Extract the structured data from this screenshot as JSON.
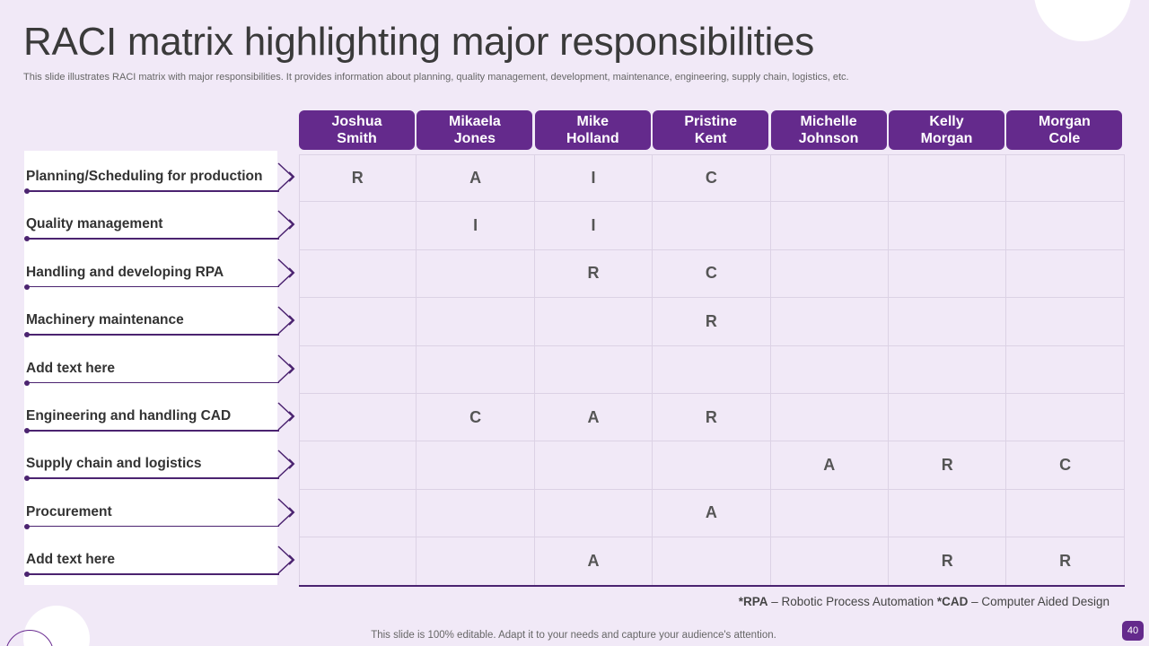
{
  "title": "RACI matrix highlighting major responsibilities",
  "subtitle": "This slide illustrates RACI matrix with major responsibilities. It provides information about planning, quality management, development, maintenance, engineering, supply chain, logistics, etc.",
  "people": [
    "Joshua\nSmith",
    "Mikaela\nJones",
    "Mike\nHolland",
    "Pristine\nKent",
    "Michelle\nJohnson",
    "Kelly\nMorgan",
    "Morgan\nCole"
  ],
  "rows": [
    {
      "label": "Planning/Scheduling for production",
      "cells": [
        "R",
        "A",
        "I",
        "C",
        "",
        "",
        ""
      ]
    },
    {
      "label": "Quality management",
      "cells": [
        "",
        "I",
        "I",
        "",
        "",
        "",
        ""
      ]
    },
    {
      "label": "Handling and developing RPA",
      "cells": [
        "",
        "",
        "R",
        "C",
        "",
        "",
        ""
      ]
    },
    {
      "label": "Machinery maintenance",
      "cells": [
        "",
        "",
        "",
        "R",
        "",
        "",
        ""
      ]
    },
    {
      "label": "Add text  here",
      "cells": [
        "",
        "",
        "",
        "",
        "",
        "",
        ""
      ]
    },
    {
      "label": "Engineering and handling CAD",
      "cells": [
        "",
        "C",
        "A",
        "R",
        "",
        "",
        ""
      ]
    },
    {
      "label": "Supply chain and logistics",
      "cells": [
        "",
        "",
        "",
        "",
        "A",
        "R",
        "C"
      ]
    },
    {
      "label": "Procurement",
      "cells": [
        "",
        "",
        "",
        "A",
        "",
        "",
        ""
      ]
    },
    {
      "label": "Add text  here",
      "cells": [
        "",
        "",
        "A",
        "",
        "",
        "R",
        "R"
      ]
    }
  ],
  "footnote": {
    "rpa_abbr": "*RPA",
    "rpa_text": " – Robotic Process Automation ",
    "cad_abbr": "*CAD",
    "cad_text": " – Computer  Aided Design"
  },
  "footer": "This slide is 100% editable. Adapt it to your needs and capture your audience's attention.",
  "page_number": "40",
  "colors": {
    "accent": "#642a8c",
    "background": "#f1e9f7",
    "line": "#4b2370"
  }
}
